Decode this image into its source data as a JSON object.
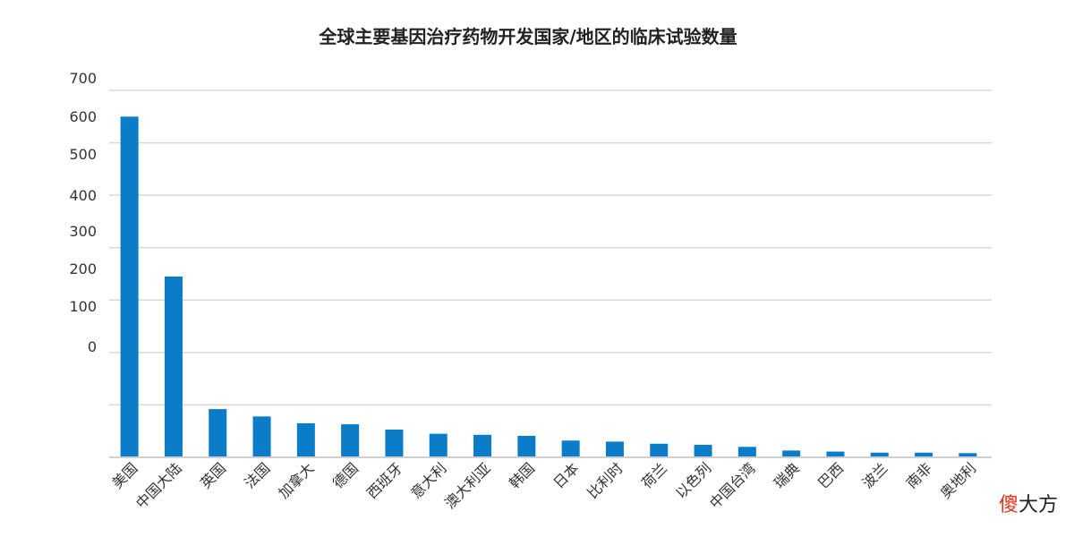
{
  "chart_data": {
    "type": "bar",
    "title": "全球主要基因治疗药物开发国家/地区的临床试验数量",
    "xlabel": "",
    "ylabel": "",
    "y_tick_labels": [
      "700",
      "600",
      "500",
      "400",
      "300",
      "200",
      "100",
      "0"
    ],
    "grid": true,
    "ylim": [
      0,
      700
    ],
    "categories": [
      "美国",
      "中国大陆",
      "英国",
      "法国",
      "加拿大",
      "德国",
      "西班牙",
      "意大利",
      "澳大利亚",
      "韩国",
      "日本",
      "比利时",
      "荷兰",
      "以色列",
      "中国台湾",
      "瑞典",
      "巴西",
      "波兰",
      "南非",
      "奥地利"
    ],
    "values": [
      650,
      345,
      92,
      78,
      65,
      63,
      53,
      45,
      43,
      41,
      32,
      30,
      26,
      24,
      20,
      13,
      11,
      9,
      9,
      8
    ],
    "colors": {
      "bar": "#0a7cc8"
    }
  },
  "watermark": {
    "part1": "傻",
    "part2": "大方"
  }
}
